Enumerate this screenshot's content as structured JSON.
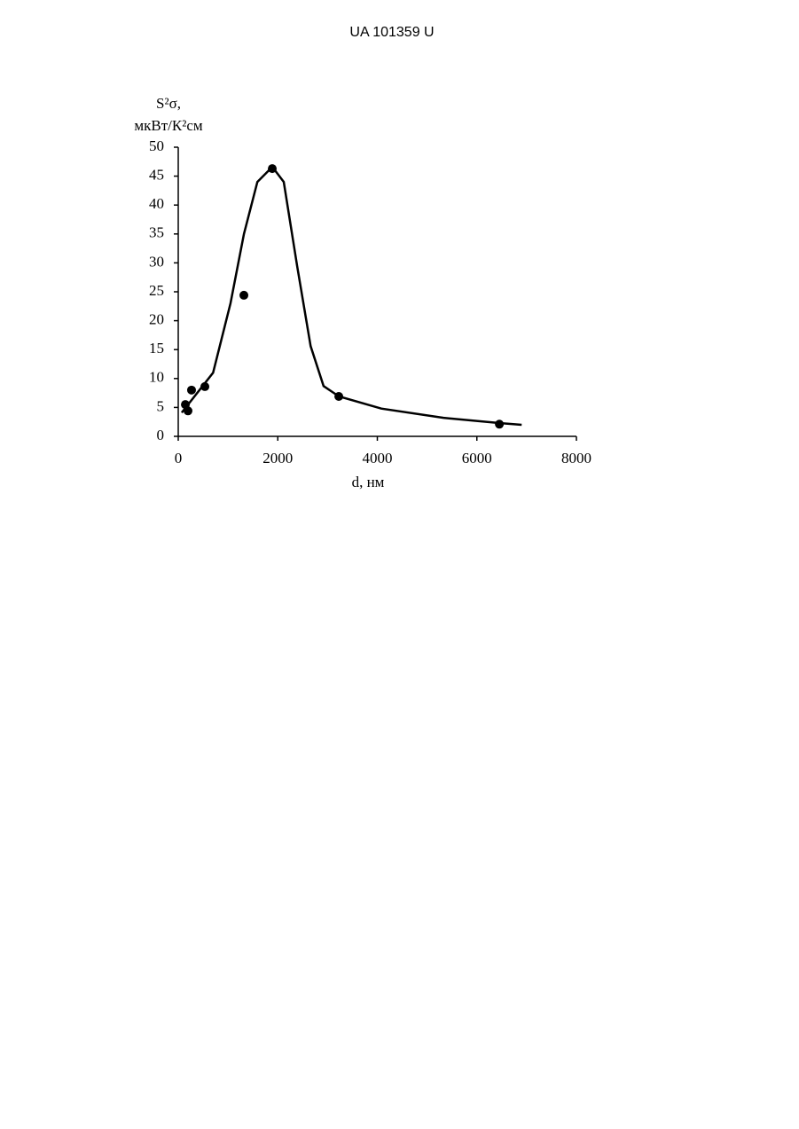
{
  "header": {
    "text": "UA 101359 U"
  },
  "chart_data": {
    "type": "scatter",
    "ylabel_lines": [
      "S²σ,",
      "мкВт/К²см"
    ],
    "xlabel": "d, нм",
    "xlim": [
      0,
      8000
    ],
    "xticks": [
      0,
      2000,
      4000,
      6000,
      8000
    ],
    "ylim": [
      0,
      50
    ],
    "yticks": [
      0,
      5,
      10,
      15,
      20,
      25,
      30,
      35,
      40,
      45,
      50
    ],
    "color": "#000000",
    "points": {
      "x": [
        143,
        196,
        267,
        535,
        1319,
        1889,
        3226,
        6452
      ],
      "y": [
        5.5,
        4.4,
        8.0,
        8.6,
        24.4,
        46.3,
        6.9,
        2.1
      ]
    },
    "curve": {
      "x": [
        70,
        700,
        1050,
        1320,
        1590,
        1890,
        2120,
        2390,
        2660,
        2920,
        3230,
        4080,
        5330,
        6450,
        6900
      ],
      "y": [
        4.1,
        11,
        23,
        35,
        44,
        46.6,
        44,
        29.4,
        15.6,
        8.7,
        6.9,
        4.8,
        3.2,
        2.3,
        2.0
      ]
    }
  }
}
